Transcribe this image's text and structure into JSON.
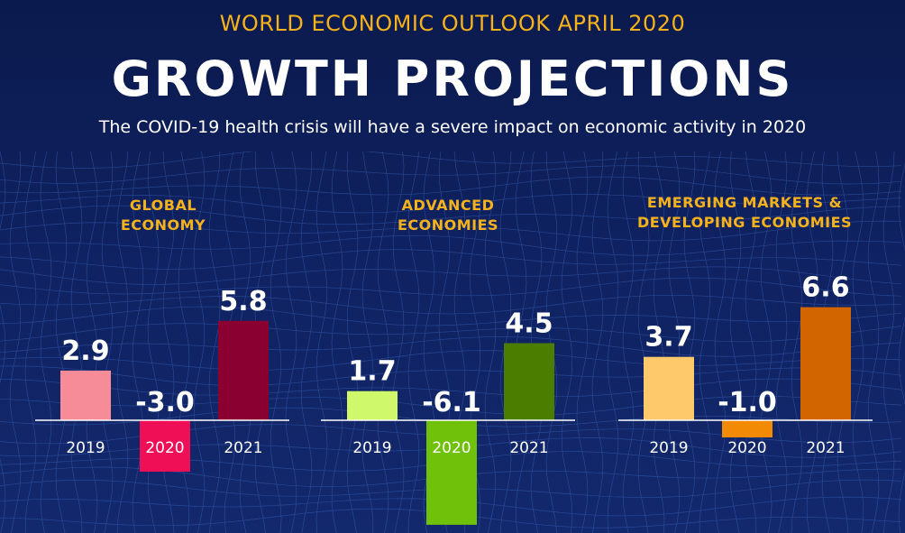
{
  "header": {
    "kicker": "WORLD ECONOMIC OUTLOOK  APRIL 2020",
    "title": "GROWTH PROJECTIONS",
    "subtitle": "The COVID-19 health crisis will have a severe impact on economic activity in 2020"
  },
  "chart_data": [
    {
      "type": "bar",
      "title": [
        "GLOBAL",
        "ECONOMY"
      ],
      "categories": [
        "2019",
        "2020",
        "2021"
      ],
      "values": [
        2.9,
        -3.0,
        5.8
      ],
      "labels": [
        "2.9",
        "-3.0",
        "5.8"
      ],
      "colors": [
        "#f58c98",
        "#ee0f56",
        "#8a0030"
      ]
    },
    {
      "type": "bar",
      "title": [
        "ADVANCED",
        "ECONOMIES"
      ],
      "categories": [
        "2019",
        "2020",
        "2021"
      ],
      "values": [
        1.7,
        -6.1,
        4.5
      ],
      "labels": [
        "1.7",
        "-6.1",
        "4.5"
      ],
      "colors": [
        "#cff86a",
        "#6fc10a",
        "#4b7d00"
      ]
    },
    {
      "type": "bar",
      "title": [
        "EMERGING MARKETS &",
        "DEVELOPING ECONOMIES"
      ],
      "categories": [
        "2019",
        "2020",
        "2021"
      ],
      "values": [
        3.7,
        -1.0,
        6.6
      ],
      "labels": [
        "3.7",
        "-1.0",
        "6.6"
      ],
      "colors": [
        "#fdc96b",
        "#f28a06",
        "#d26500"
      ]
    }
  ]
}
